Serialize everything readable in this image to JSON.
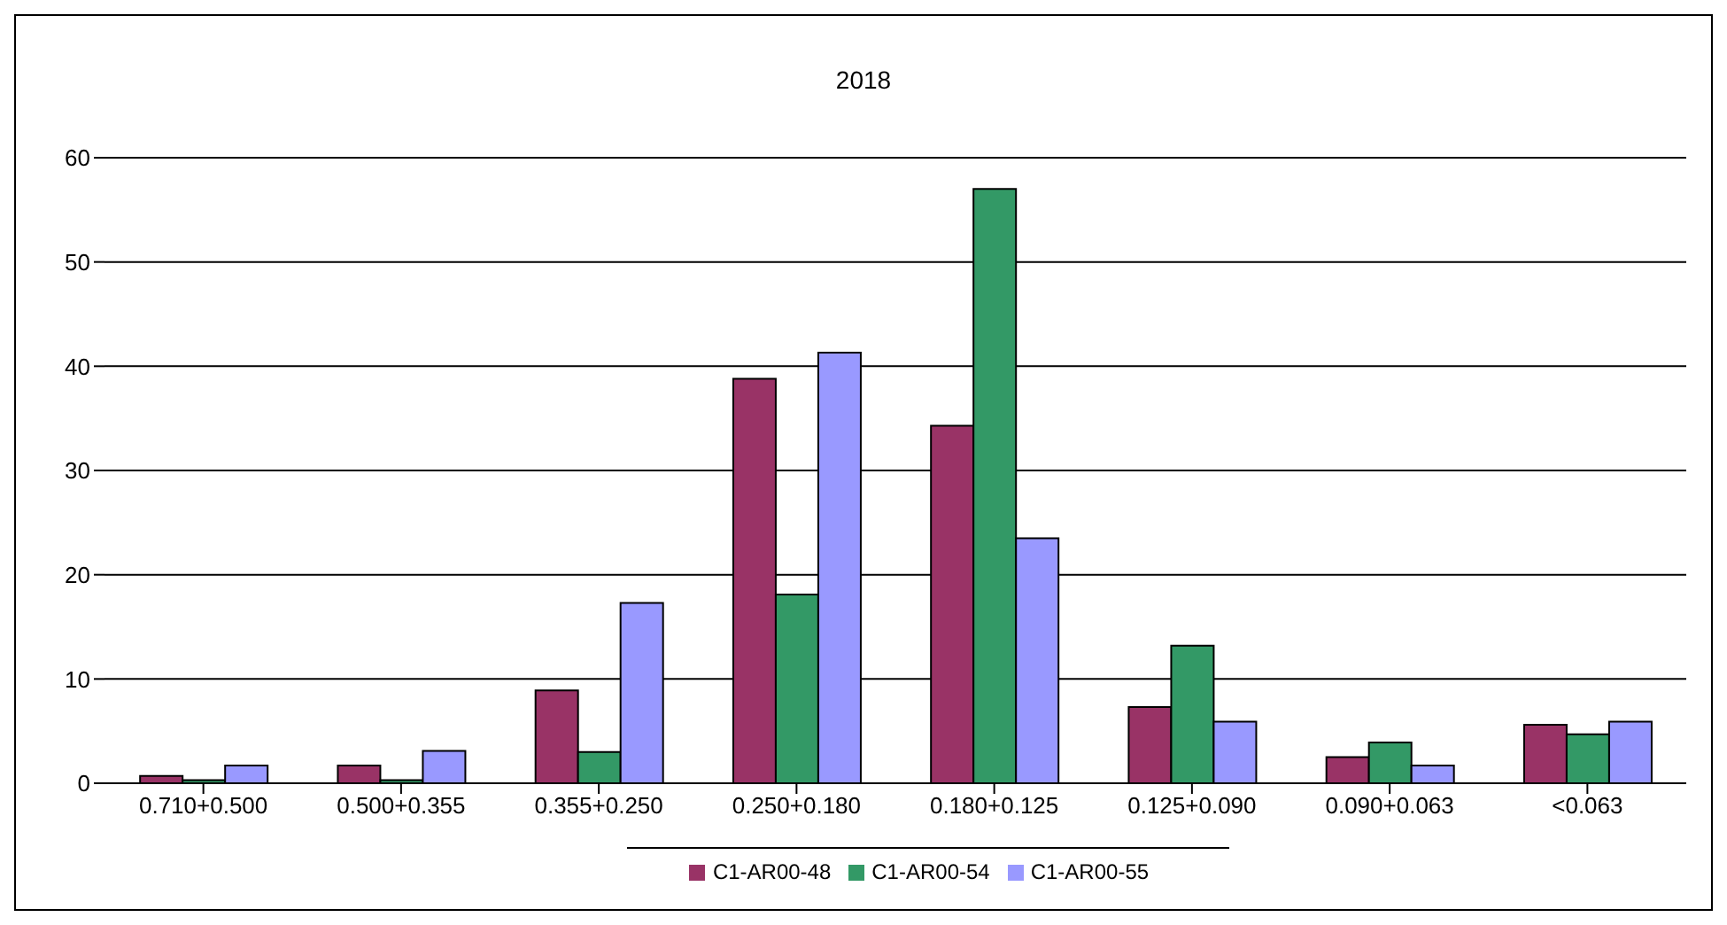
{
  "chart_data": {
    "type": "bar",
    "title": "2018",
    "categories": [
      "0.710+0.500",
      "0.500+0.355",
      "0.355+0.250",
      "0.250+0.180",
      "0.180+0.125",
      "0.125+0.090",
      "0.090+0.063",
      "<0.063"
    ],
    "series": [
      {
        "name": "C1-AR00-48",
        "color": "#993366",
        "values": [
          0.7,
          1.7,
          8.9,
          38.8,
          34.3,
          7.3,
          2.5,
          5.6
        ]
      },
      {
        "name": "C1-AR00-54",
        "color": "#339966",
        "values": [
          0.3,
          0.3,
          3.0,
          18.1,
          57.0,
          13.2,
          3.9,
          4.7
        ]
      },
      {
        "name": "C1-AR00-55",
        "color": "#9999ff",
        "values": [
          1.7,
          3.1,
          17.3,
          41.3,
          23.5,
          5.9,
          1.7,
          5.9
        ]
      }
    ],
    "ylim": [
      0,
      60
    ],
    "yticks": [
      0,
      10,
      20,
      30,
      40,
      50,
      60
    ],
    "grid": "y",
    "legend": "bottom"
  }
}
